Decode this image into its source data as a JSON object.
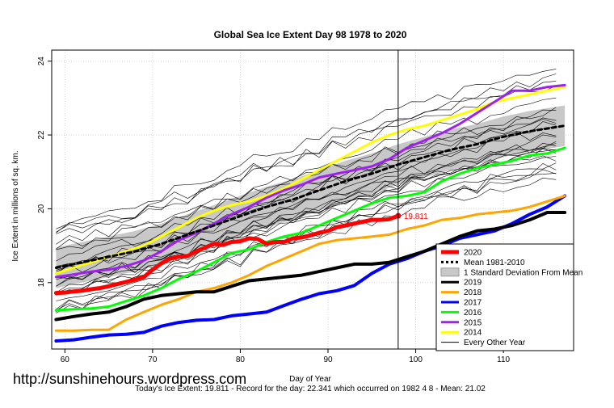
{
  "chart_data": {
    "type": "line",
    "title": "Global Sea Ice Extent Day 98 1978 to 2020",
    "xlabel": "Day of Year",
    "ylabel": "Ice Extent in millions of sq. km.",
    "xlim": [
      58.5,
      118
    ],
    "ylim": [
      16.2,
      24.3
    ],
    "xticks": [
      60,
      70,
      80,
      90,
      100,
      110
    ],
    "yticks": [
      18,
      20,
      22,
      24
    ],
    "grid": true,
    "legend_position": "bottom-right",
    "current_day": 98,
    "current_value_label": "19.811",
    "watermark": "http://sunshinehours.wordpress.com",
    "footer": "Today's Ice Extent: 19.811  - Record for the day: 22.341 which occurred on 1982 4 8  - Mean: 21.02",
    "series": [
      {
        "name": "2020",
        "color": "#ff0000",
        "width": 5,
        "x": [
          59,
          60,
          61,
          62,
          63,
          64,
          65,
          66,
          67,
          68,
          69,
          70,
          71,
          72,
          73,
          74,
          75,
          76,
          77,
          78,
          79,
          80,
          81,
          82,
          83,
          84,
          85,
          86,
          87,
          88,
          89,
          90,
          91,
          92,
          93,
          94,
          95,
          96,
          97,
          98
        ],
        "y": [
          17.72,
          17.73,
          17.76,
          17.78,
          17.82,
          17.85,
          17.9,
          17.96,
          18.02,
          18.08,
          18.15,
          18.35,
          18.52,
          18.65,
          18.7,
          18.72,
          18.85,
          18.95,
          19.05,
          19.02,
          19.1,
          19.12,
          19.2,
          19.18,
          19.05,
          19.1,
          19.1,
          19.2,
          19.22,
          19.28,
          19.35,
          19.4,
          19.5,
          19.55,
          19.6,
          19.65,
          19.7,
          19.7,
          19.72,
          19.81
        ]
      },
      {
        "name": "Mean 1981-2010",
        "color": "#000000",
        "width": 3,
        "dash": "5,4",
        "x": [
          59,
          62,
          65,
          68,
          71,
          74,
          77,
          80,
          83,
          86,
          89,
          92,
          95,
          98,
          101,
          104,
          107,
          110,
          113,
          117
        ],
        "y": [
          18.4,
          18.55,
          18.7,
          18.85,
          19.05,
          19.3,
          19.55,
          19.8,
          20.05,
          20.25,
          20.5,
          20.75,
          20.95,
          21.2,
          21.4,
          21.6,
          21.75,
          21.95,
          22.1,
          22.25
        ]
      },
      {
        "name": "2019",
        "color": "#000000",
        "width": 4,
        "x": [
          59,
          61,
          63,
          65,
          67,
          69,
          71,
          73,
          75,
          77,
          79,
          81,
          83,
          85,
          87,
          89,
          91,
          93,
          95,
          97,
          99,
          101,
          103,
          105,
          107,
          109,
          111,
          113,
          115,
          117
        ],
        "y": [
          17.0,
          17.08,
          17.15,
          17.2,
          17.35,
          17.55,
          17.65,
          17.7,
          17.75,
          17.75,
          17.9,
          18.05,
          18.1,
          18.15,
          18.2,
          18.3,
          18.4,
          18.5,
          18.5,
          18.55,
          18.7,
          18.85,
          19.05,
          19.25,
          19.4,
          19.45,
          19.55,
          19.7,
          19.9,
          19.9
        ]
      },
      {
        "name": "2018",
        "color": "#ffa500",
        "width": 3,
        "x": [
          59,
          61,
          63,
          65,
          67,
          69,
          71,
          73,
          75,
          77,
          79,
          81,
          83,
          85,
          87,
          89,
          91,
          93,
          95,
          97,
          99,
          101,
          103,
          105,
          107,
          109,
          111,
          113,
          115,
          117
        ],
        "y": [
          16.7,
          16.7,
          16.72,
          16.72,
          17.0,
          17.2,
          17.4,
          17.55,
          17.75,
          17.85,
          18.0,
          18.2,
          18.45,
          18.65,
          18.85,
          19.05,
          19.15,
          19.2,
          19.25,
          19.3,
          19.45,
          19.55,
          19.7,
          19.75,
          19.85,
          19.9,
          19.95,
          20.05,
          20.2,
          20.35
        ]
      },
      {
        "name": "2017",
        "color": "#0000ff",
        "width": 4,
        "x": [
          59,
          61,
          63,
          65,
          67,
          69,
          71,
          73,
          75,
          77,
          79,
          81,
          83,
          85,
          87,
          89,
          91,
          93,
          95,
          97,
          99,
          101,
          103,
          105,
          107,
          109,
          111,
          113,
          115,
          117
        ],
        "y": [
          16.42,
          16.45,
          16.52,
          16.58,
          16.6,
          16.65,
          16.82,
          16.92,
          16.98,
          17.0,
          17.1,
          17.15,
          17.2,
          17.38,
          17.55,
          17.7,
          17.78,
          17.92,
          18.25,
          18.5,
          18.65,
          18.85,
          19.0,
          19.2,
          19.3,
          19.4,
          19.6,
          19.85,
          20.05,
          20.35
        ]
      },
      {
        "name": "2016",
        "color": "#00ff00",
        "width": 3,
        "x": [
          59,
          61,
          63,
          65,
          67,
          69,
          71,
          73,
          75,
          77,
          79,
          81,
          83,
          85,
          87,
          89,
          91,
          93,
          95,
          97,
          99,
          101,
          103,
          105,
          107,
          109,
          111,
          113,
          115,
          117
        ],
        "y": [
          17.25,
          17.28,
          17.3,
          17.35,
          17.5,
          17.65,
          17.85,
          18.1,
          18.3,
          18.55,
          18.8,
          18.9,
          19.1,
          19.25,
          19.35,
          19.55,
          19.75,
          19.95,
          20.15,
          20.3,
          20.35,
          20.45,
          20.75,
          20.95,
          21.1,
          21.2,
          21.3,
          21.45,
          21.5,
          21.65
        ]
      },
      {
        "name": "2015",
        "color": "#a020f0",
        "width": 3,
        "x": [
          59,
          61,
          63,
          65,
          67,
          69,
          71,
          73,
          75,
          77,
          79,
          81,
          83,
          85,
          87,
          89,
          91,
          93,
          95,
          97,
          99,
          101,
          103,
          105,
          107,
          109,
          111,
          113,
          115,
          117
        ],
        "y": [
          18.15,
          18.22,
          18.3,
          18.35,
          18.45,
          18.6,
          18.85,
          19.15,
          19.35,
          19.6,
          19.85,
          20.05,
          20.3,
          20.5,
          20.65,
          20.85,
          20.95,
          21.05,
          21.15,
          21.35,
          21.65,
          21.85,
          22.05,
          22.3,
          22.6,
          22.9,
          23.2,
          23.2,
          23.3,
          23.35
        ]
      },
      {
        "name": "2014",
        "color": "#ffff00",
        "width": 3,
        "x": [
          59,
          61,
          63,
          65,
          67,
          69,
          71,
          73,
          75,
          77,
          79,
          81,
          83,
          85,
          87,
          89,
          91,
          93,
          95,
          97,
          99,
          101,
          103,
          105,
          107,
          109,
          111,
          113,
          115,
          117
        ],
        "y": [
          18.25,
          18.4,
          18.55,
          18.7,
          18.85,
          19.0,
          19.25,
          19.5,
          19.75,
          19.95,
          20.1,
          20.2,
          20.35,
          20.55,
          20.8,
          21.05,
          21.3,
          21.55,
          21.8,
          22.0,
          22.15,
          22.25,
          22.4,
          22.55,
          22.7,
          22.9,
          23.0,
          23.1,
          23.2,
          23.3
        ]
      }
    ],
    "legend": [
      {
        "label": "2020",
        "color": "#ff0000",
        "kind": "line"
      },
      {
        "label": "Mean 1981-2010",
        "color": "#000000",
        "kind": "dashed"
      },
      {
        "label": "1 Standard Deviation From Mean",
        "color": "#c8c8c8",
        "kind": "box"
      },
      {
        "label": "2019",
        "color": "#000000",
        "kind": "line"
      },
      {
        "label": "2018",
        "color": "#ffa500",
        "kind": "line"
      },
      {
        "label": "2017",
        "color": "#0000ff",
        "kind": "line"
      },
      {
        "label": "2016",
        "color": "#00ff00",
        "kind": "line"
      },
      {
        "label": "2015",
        "color": "#a020f0",
        "kind": "line"
      },
      {
        "label": "2014",
        "color": "#ffff00",
        "kind": "line"
      },
      {
        "label": "Every Other Year",
        "color": "#000000",
        "kind": "thin"
      }
    ]
  }
}
